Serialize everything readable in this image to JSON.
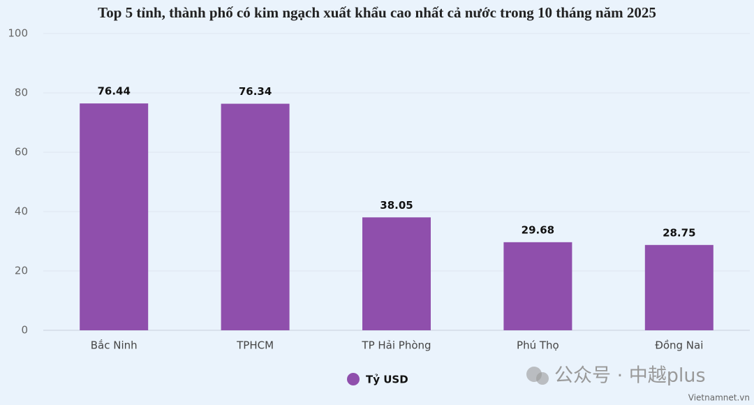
{
  "chart_data": {
    "type": "bar",
    "title": "Top 5 tỉnh, thành phố có kim ngạch xuất khẩu cao nhất cả nước trong 10 tháng năm 2025",
    "categories": [
      "Bắc Ninh",
      "TPHCM",
      "TP Hải Phòng",
      "Phú Thọ",
      "Đồng Nai"
    ],
    "series": [
      {
        "name": "Tỷ USD",
        "color": "#8f4fac",
        "values": [
          76.44,
          76.34,
          38.05,
          29.68,
          28.75
        ]
      }
    ],
    "ylim": [
      0,
      100
    ],
    "yticks": [
      0,
      20,
      40,
      60,
      80,
      100
    ],
    "grid": true,
    "watermark": "公众号 · 中越plus",
    "source": "Vietnamnet.vn"
  }
}
